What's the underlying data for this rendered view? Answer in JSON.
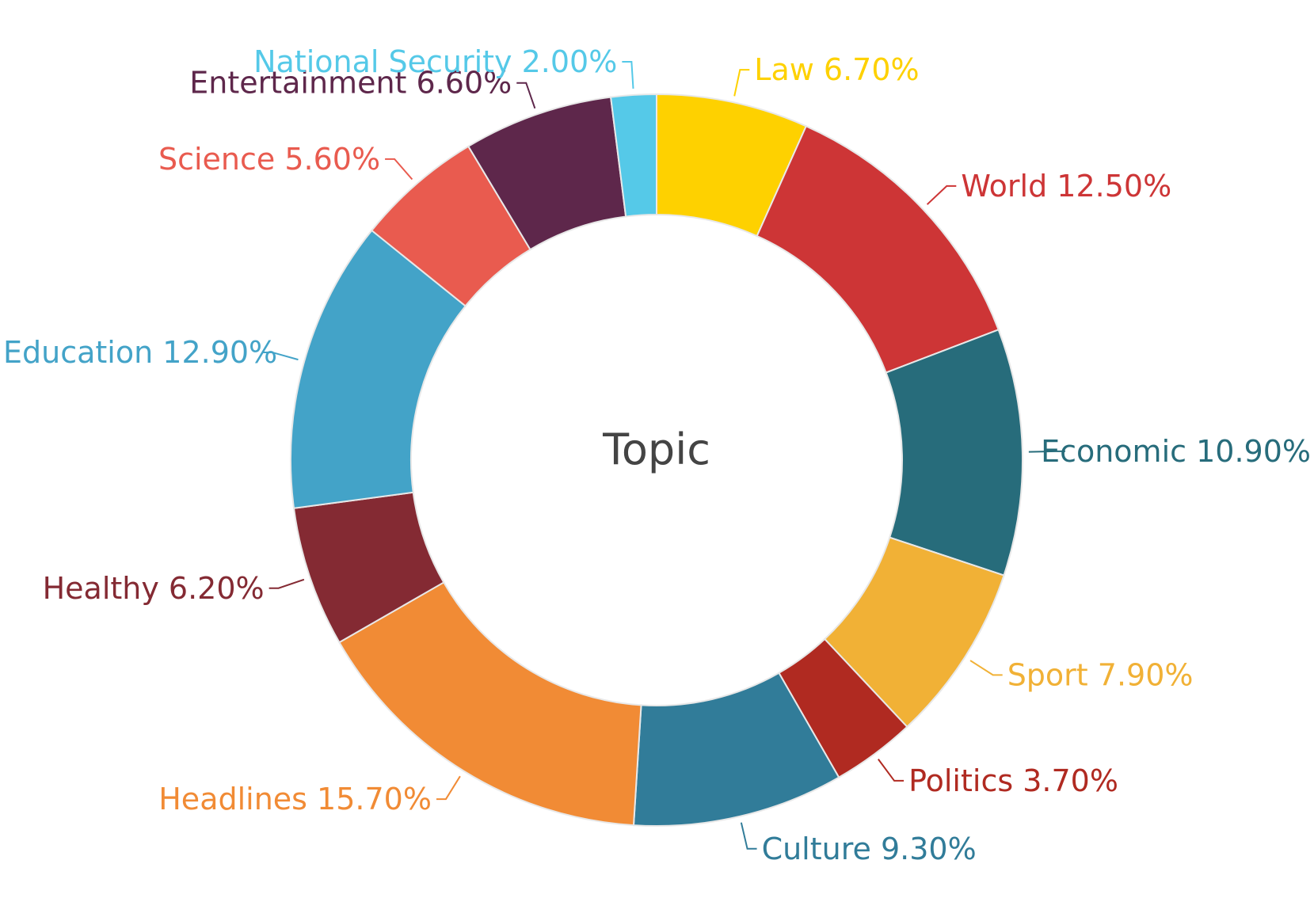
{
  "chart_data": {
    "type": "pie",
    "variant": "donut",
    "title": "Topic",
    "slices": [
      {
        "label": "Law",
        "value": 6.7,
        "display": "6.70%",
        "color": "#FED100"
      },
      {
        "label": "World",
        "value": 12.5,
        "display": "12.50%",
        "color": "#CD3536"
      },
      {
        "label": "Economic",
        "value": 10.9,
        "display": "10.90%",
        "color": "#276C7B"
      },
      {
        "label": "Sport",
        "value": 7.9,
        "display": "7.90%",
        "color": "#F1B136"
      },
      {
        "label": "Politics",
        "value": 3.7,
        "display": "3.70%",
        "color": "#B02A21"
      },
      {
        "label": "Culture",
        "value": 9.3,
        "display": "9.30%",
        "color": "#317C99"
      },
      {
        "label": "Headlines",
        "value": 15.7,
        "display": "15.70%",
        "color": "#F18B35"
      },
      {
        "label": "Healthy",
        "value": 6.2,
        "display": "6.20%",
        "color": "#842A33"
      },
      {
        "label": "Education",
        "value": 12.9,
        "display": "12.90%",
        "color": "#43A3C8"
      },
      {
        "label": "Science",
        "value": 5.6,
        "display": "5.60%",
        "color": "#E95B4F"
      },
      {
        "label": "Entertainment",
        "value": 6.6,
        "display": "6.60%",
        "color": "#5E274B"
      },
      {
        "label": "National Security",
        "value": 2.0,
        "display": "2.00%",
        "color": "#55C9E8"
      }
    ],
    "start": "top",
    "direction": "clockwise",
    "legend": "none"
  }
}
